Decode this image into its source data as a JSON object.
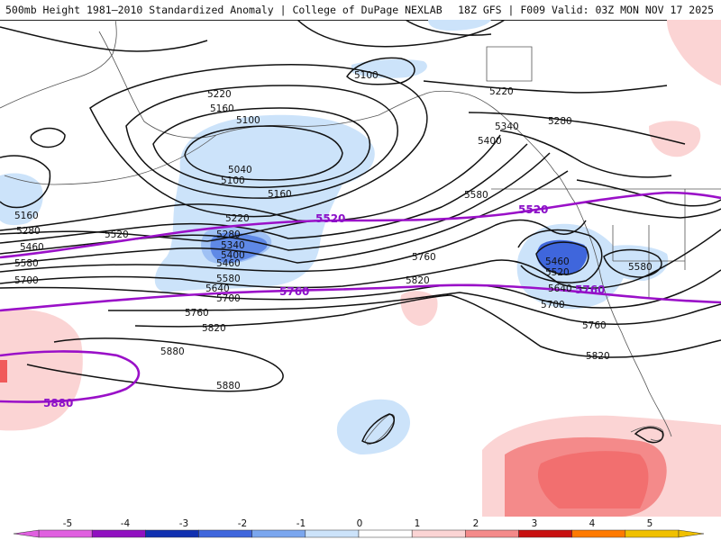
{
  "header": {
    "title_left": "500mb Height 1981–2010 Standardized Anomaly | College of DuPage NEXLAB",
    "title_right": "18Z GFS | F009 Valid: 03Z MON NOV 17 2025"
  },
  "colors": {
    "contour": "#111111",
    "highlight_contour": "#9a10c8",
    "neg1": "#cce3fa",
    "neg2": "#7aa6ee",
    "neg3": "#3f66dc",
    "pos1": "#fbd4d4",
    "pos2": "#f48a8a",
    "pos3": "#f05a5a",
    "coast": "#555555"
  },
  "contours": {
    "black_labels": [
      {
        "id": "l5220a",
        "text": "5220"
      },
      {
        "id": "l5160a",
        "text": "5160"
      },
      {
        "id": "l5100a",
        "text": "5100"
      },
      {
        "id": "l5040",
        "text": "5040"
      },
      {
        "id": "l5100b",
        "text": "5100"
      },
      {
        "id": "l5160b",
        "text": "5160"
      },
      {
        "id": "l5220b",
        "text": "5220"
      },
      {
        "id": "l5160c",
        "text": "5160"
      },
      {
        "id": "l5280a",
        "text": "5280"
      },
      {
        "id": "l5460a",
        "text": "5460"
      },
      {
        "id": "l5520a",
        "text": "5520"
      },
      {
        "id": "l5580a",
        "text": "5580"
      },
      {
        "id": "l5700a",
        "text": "5700"
      },
      {
        "id": "l5280b",
        "text": "5280"
      },
      {
        "id": "l5340",
        "text": "5340"
      },
      {
        "id": "l5400",
        "text": "5400"
      },
      {
        "id": "l5460b",
        "text": "5460"
      },
      {
        "id": "l5580b",
        "text": "5580"
      },
      {
        "id": "l5640a",
        "text": "5640"
      },
      {
        "id": "l5700b",
        "text": "5700"
      },
      {
        "id": "l5760a",
        "text": "5760"
      },
      {
        "id": "l5820a",
        "text": "5820"
      },
      {
        "id": "l5880a",
        "text": "5880"
      },
      {
        "id": "l5880b",
        "text": "5880"
      },
      {
        "id": "l5100c",
        "text": "5100"
      },
      {
        "id": "l5220c",
        "text": "5220"
      },
      {
        "id": "l5280c",
        "text": "5280"
      },
      {
        "id": "l5340b",
        "text": "5340"
      },
      {
        "id": "l5400b",
        "text": "5400"
      },
      {
        "id": "l5580c",
        "text": "5580"
      },
      {
        "id": "l5760b",
        "text": "5760"
      },
      {
        "id": "l5820b",
        "text": "5820"
      },
      {
        "id": "l5460c",
        "text": "5460"
      },
      {
        "id": "l5520c",
        "text": "5520"
      },
      {
        "id": "l5640b",
        "text": "5640"
      },
      {
        "id": "l5580d",
        "text": "5580"
      },
      {
        "id": "l5700c",
        "text": "5700"
      },
      {
        "id": "l5760c",
        "text": "5760"
      },
      {
        "id": "l5820c",
        "text": "5820"
      }
    ],
    "highlight_labels": [
      {
        "id": "p5520a",
        "text": "5520"
      },
      {
        "id": "p5520b",
        "text": "5520"
      },
      {
        "id": "p5760a",
        "text": "5760"
      },
      {
        "id": "p5760b",
        "text": "5760"
      },
      {
        "id": "p5880",
        "text": "5880"
      }
    ]
  },
  "legend": {
    "ticks": [
      "-5",
      "-4",
      "-3",
      "-2",
      "-1",
      "0",
      "1",
      "2",
      "3",
      "4",
      "5"
    ],
    "colors": [
      "#e060e0",
      "#9010c0",
      "#1030b0",
      "#3f66dc",
      "#7aa6ee",
      "#cce3fa",
      "#ffffff",
      "#fbd4d4",
      "#f48a8a",
      "#c81010",
      "#ff7a00",
      "#f0c000"
    ]
  }
}
